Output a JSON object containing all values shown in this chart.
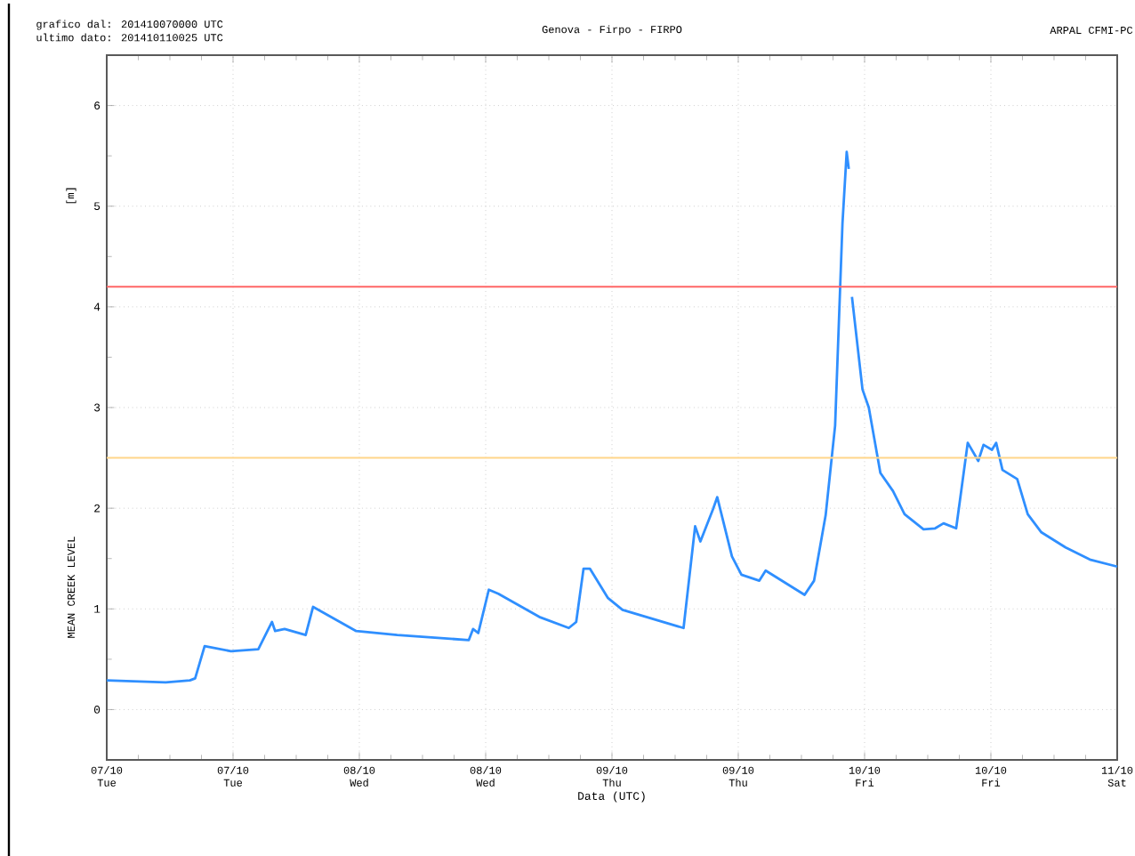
{
  "chart_data": {
    "type": "line",
    "title": "Genova - Firpo - FIRPO",
    "xlabel": "Data (UTC)",
    "ylabel": "MEAN CREEK LEVEL",
    "annotations": [
      "grafico dal: 201410070000 UTC",
      "ultimo dato: 201410110025 UTC",
      "ARPAL CFMI-PC",
      "[m]"
    ],
    "xlim": [
      "2014-10-07T00:00",
      "2014-10-11T00:00"
    ],
    "ylim": [
      -0.5,
      6.5
    ],
    "xticks": [
      {
        "value": "2014-10-07T00:00",
        "label": "07/10 Tue"
      },
      {
        "value": "2014-10-07T12:00",
        "label": "07/10 Tue"
      },
      {
        "value": "2014-10-08T00:00",
        "label": "08/10 Wed"
      },
      {
        "value": "2014-10-08T12:00",
        "label": "08/10 Wed"
      },
      {
        "value": "2014-10-09T00:00",
        "label": "09/10 Thu"
      },
      {
        "value": "2014-10-09T12:00",
        "label": "09/10 Thu"
      },
      {
        "value": "2014-10-10T00:00",
        "label": "10/10 Fri"
      },
      {
        "value": "2014-10-10T12:00",
        "label": "10/10 Fri"
      },
      {
        "value": "2014-10-11T00:00",
        "label": "11/10 Sat"
      }
    ],
    "yticks": [
      0,
      1,
      2,
      3,
      4,
      5,
      6
    ],
    "grid": true,
    "marker": "none",
    "line_style": "solid",
    "ref_lines": [
      {
        "axis": "y",
        "value": 4.2,
        "color": "#ff6666"
      },
      {
        "axis": "y",
        "value": 2.5,
        "color": "#ffd68a"
      }
    ],
    "series": [
      {
        "color": "#2f8fff",
        "x": [
          "2014-10-07T00:00",
          "2014-10-07T05:36",
          "2014-10-07T07:54",
          "2014-10-07T08:24",
          "2014-10-07T09:18",
          "2014-10-07T11:48",
          "2014-10-07T14:24",
          "2014-10-07T15:42",
          "2014-10-07T16:00",
          "2014-10-07T16:54",
          "2014-10-07T18:54",
          "2014-10-07T19:36",
          "2014-10-07T23:42",
          "2014-10-08T03:36",
          "2014-10-08T10:24",
          "2014-10-08T10:48",
          "2014-10-08T11:18",
          "2014-10-08T12:18",
          "2014-10-08T13:12",
          "2014-10-08T17:06",
          "2014-10-08T19:54",
          "2014-10-08T20:36",
          "2014-10-08T21:18",
          "2014-10-08T21:54",
          "2014-10-08T23:36",
          "2014-10-09T01:00",
          "2014-10-09T06:48",
          "2014-10-09T07:54",
          "2014-10-09T08:24",
          "2014-10-09T09:36",
          "2014-10-09T10:00",
          "2014-10-09T11:24",
          "2014-10-09T12:18",
          "2014-10-09T14:00",
          "2014-10-09T14:36",
          "2014-10-09T18:18",
          "2014-10-09T19:12",
          "2014-10-09T20:18",
          "2014-10-09T21:12",
          "2014-10-09T21:54",
          "2014-10-09T22:18",
          "2014-10-09T22:30",
          "2014-10-09T22:39",
          "2014-10-09T22:48",
          "2014-10-09T23:48",
          "2014-10-10T00:24",
          "2014-10-10T01:30",
          "2014-10-10T02:42",
          "2014-10-10T03:48",
          "2014-10-10T05:36",
          "2014-10-10T06:42",
          "2014-10-10T07:30",
          "2014-10-10T08:42",
          "2014-10-10T09:48",
          "2014-10-10T10:48",
          "2014-10-10T11:18",
          "2014-10-10T12:06",
          "2014-10-10T12:30",
          "2014-10-10T13:06",
          "2014-10-10T14:30",
          "2014-10-10T15:30",
          "2014-10-10T16:48",
          "2014-10-10T19:06",
          "2014-10-10T21:24",
          "2014-10-11T00:00"
        ],
        "values": [
          0.29,
          0.27,
          0.29,
          0.31,
          0.63,
          0.58,
          0.6,
          0.87,
          0.78,
          0.8,
          0.74,
          1.02,
          0.78,
          0.74,
          0.69,
          0.8,
          0.76,
          1.19,
          1.15,
          0.92,
          0.81,
          0.87,
          1.4,
          1.4,
          1.11,
          0.99,
          0.81,
          1.82,
          1.67,
          1.99,
          2.11,
          1.52,
          1.34,
          1.28,
          1.38,
          1.14,
          1.28,
          1.93,
          2.82,
          4.83,
          5.54,
          5.37,
          null,
          4.1,
          3.18,
          3.0,
          2.35,
          2.17,
          1.94,
          1.79,
          1.8,
          1.85,
          1.8,
          2.65,
          2.47,
          2.63,
          2.58,
          2.65,
          2.38,
          2.29,
          1.94,
          1.76,
          1.61,
          1.49,
          1.42
        ]
      }
    ]
  }
}
